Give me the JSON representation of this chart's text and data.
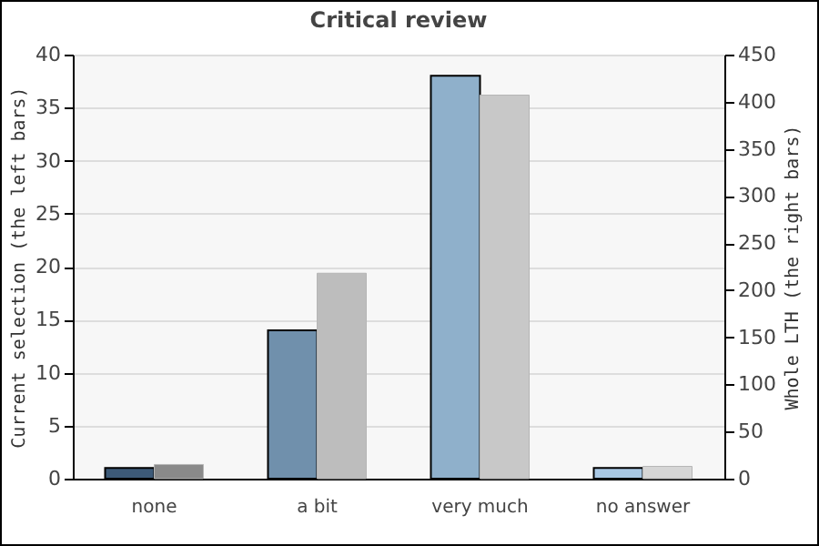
{
  "chart_data": {
    "type": "bar",
    "title": "Critical review",
    "categories": [
      "none",
      "a bit",
      "very much",
      "no answer"
    ],
    "ylabel": "Current selection (the left bars)",
    "y2label": "Whole LTH (the right bars)",
    "ylim": [
      0,
      40
    ],
    "yticks": [
      0,
      5,
      10,
      15,
      20,
      25,
      30,
      35,
      40
    ],
    "y2lim": [
      0,
      450
    ],
    "y2ticks": [
      0,
      50,
      100,
      150,
      200,
      250,
      300,
      350,
      400,
      450
    ],
    "grid": "y",
    "series": [
      {
        "colors": [
          "#3d5a78",
          "#7090ac",
          "#8fb0cb",
          "#a9c8e4"
        ],
        "values": [
          1,
          14,
          38,
          1
        ]
      },
      {
        "axis": "y2",
        "colors": [
          "#8a8a8a",
          "#bdbdbd",
          "#c8c8c8",
          "#d6d6d6"
        ],
        "values": [
          15,
          218,
          407,
          13
        ]
      }
    ]
  }
}
